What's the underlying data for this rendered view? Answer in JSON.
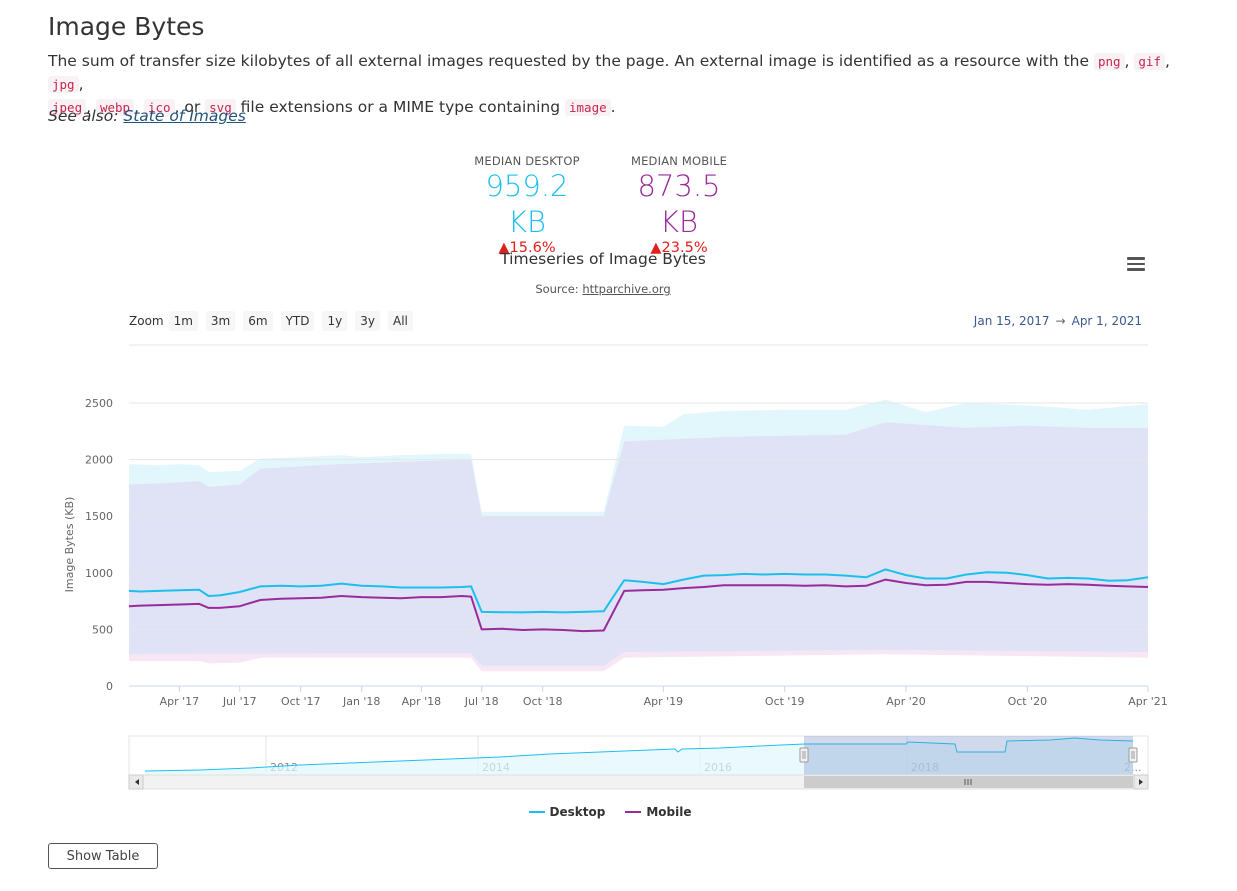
{
  "page": {
    "title": "Image Bytes",
    "desc_parts": [
      "The sum of transfer size kilobytes of all external images requested by the page. An external image is identified as a resource with the ",
      ", ",
      ", ",
      ",",
      ", ",
      ", ",
      ", or ",
      " file extensions or a MIME type containing ",
      "."
    ],
    "codes": [
      "png",
      "gif",
      "jpg",
      "jpeg",
      "webp",
      "ico",
      "svg",
      "image"
    ],
    "see_also_label": "See also:",
    "see_also_link": "State of Images"
  },
  "metrics": {
    "desktop": {
      "label": "MEDIAN DESKTOP",
      "value": "959.2 KB",
      "change": "▲15.6%"
    },
    "mobile": {
      "label": "MEDIAN MOBILE",
      "value": "873.5 KB",
      "change": "▲23.5%"
    }
  },
  "chart": {
    "title": "Timeseries of Image Bytes",
    "source_label": "Source:",
    "source_link": "httparchive.org",
    "zoom_label": "Zoom",
    "zoom_buttons": [
      "1m",
      "3m",
      "6m",
      "YTD",
      "1y",
      "3y",
      "All"
    ],
    "range_from": "Jan 15, 2017",
    "range_arrow": "→",
    "range_to": "Apr 1, 2021",
    "show_table": "Show Table"
  },
  "colors": {
    "desktop": "#1cc0ee",
    "mobile": "#9a2b9b",
    "band_desktop": "#dff6fc",
    "band_mobile": "#f6e4f3",
    "overlap": "#dfe3f5"
  },
  "chart_data": {
    "type": "line",
    "title": "Timeseries of Image Bytes",
    "ylabel": "Image Bytes (KB)",
    "ylim": [
      0,
      2500
    ],
    "yticks": [
      0,
      500,
      1000,
      1500,
      2000,
      2500
    ],
    "xlim": [
      "2017-01-15",
      "2021-04-01"
    ],
    "xticks": [
      {
        "label": "Apr '17",
        "date": "2017-04-01"
      },
      {
        "label": "Jul '17",
        "date": "2017-07-01"
      },
      {
        "label": "Oct '17",
        "date": "2017-10-01"
      },
      {
        "label": "Jan '18",
        "date": "2018-01-01"
      },
      {
        "label": "Apr '18",
        "date": "2018-04-01"
      },
      {
        "label": "Jul '18",
        "date": "2018-07-01"
      },
      {
        "label": "Oct '18",
        "date": "2018-10-01"
      },
      {
        "label": "Apr '19",
        "date": "2019-04-01"
      },
      {
        "label": "Oct '19",
        "date": "2019-10-01"
      },
      {
        "label": "Apr '20",
        "date": "2020-04-01"
      },
      {
        "label": "Oct '20",
        "date": "2020-10-01"
      },
      {
        "label": "Apr '21",
        "date": "2021-04-01"
      }
    ],
    "series": [
      {
        "name": "Desktop",
        "points": [
          [
            "2017-01-15",
            840
          ],
          [
            "2017-02-01",
            835
          ],
          [
            "2017-03-01",
            840
          ],
          [
            "2017-04-01",
            845
          ],
          [
            "2017-05-01",
            850
          ],
          [
            "2017-05-15",
            795
          ],
          [
            "2017-06-01",
            800
          ],
          [
            "2017-07-01",
            830
          ],
          [
            "2017-08-01",
            880
          ],
          [
            "2017-09-01",
            885
          ],
          [
            "2017-10-01",
            880
          ],
          [
            "2017-11-01",
            885
          ],
          [
            "2017-12-01",
            905
          ],
          [
            "2018-01-01",
            885
          ],
          [
            "2018-02-01",
            880
          ],
          [
            "2018-03-01",
            870
          ],
          [
            "2018-04-01",
            870
          ],
          [
            "2018-05-01",
            870
          ],
          [
            "2018-06-01",
            875
          ],
          [
            "2018-06-15",
            880
          ],
          [
            "2018-07-01",
            655
          ],
          [
            "2018-08-01",
            652
          ],
          [
            "2018-09-01",
            650
          ],
          [
            "2018-10-01",
            655
          ],
          [
            "2018-11-01",
            650
          ],
          [
            "2018-12-01",
            655
          ],
          [
            "2019-01-01",
            660
          ],
          [
            "2019-02-01",
            935
          ],
          [
            "2019-03-01",
            920
          ],
          [
            "2019-04-01",
            900
          ],
          [
            "2019-05-01",
            940
          ],
          [
            "2019-06-01",
            975
          ],
          [
            "2019-07-01",
            980
          ],
          [
            "2019-08-01",
            990
          ],
          [
            "2019-09-01",
            985
          ],
          [
            "2019-10-01",
            990
          ],
          [
            "2019-11-01",
            985
          ],
          [
            "2019-12-01",
            985
          ],
          [
            "2020-01-01",
            975
          ],
          [
            "2020-02-01",
            960
          ],
          [
            "2020-03-01",
            1030
          ],
          [
            "2020-04-01",
            980
          ],
          [
            "2020-05-01",
            950
          ],
          [
            "2020-06-01",
            950
          ],
          [
            "2020-07-01",
            985
          ],
          [
            "2020-08-01",
            1005
          ],
          [
            "2020-09-01",
            1000
          ],
          [
            "2020-10-01",
            980
          ],
          [
            "2020-11-01",
            950
          ],
          [
            "2020-12-01",
            955
          ],
          [
            "2021-01-01",
            950
          ],
          [
            "2021-02-01",
            930
          ],
          [
            "2021-03-01",
            935
          ],
          [
            "2021-04-01",
            960
          ]
        ]
      },
      {
        "name": "Mobile",
        "points": [
          [
            "2017-01-15",
            705
          ],
          [
            "2017-02-01",
            710
          ],
          [
            "2017-03-01",
            715
          ],
          [
            "2017-04-01",
            720
          ],
          [
            "2017-05-01",
            725
          ],
          [
            "2017-05-15",
            690
          ],
          [
            "2017-06-01",
            690
          ],
          [
            "2017-07-01",
            705
          ],
          [
            "2017-08-01",
            760
          ],
          [
            "2017-09-01",
            770
          ],
          [
            "2017-10-01",
            775
          ],
          [
            "2017-11-01",
            780
          ],
          [
            "2017-12-01",
            795
          ],
          [
            "2018-01-01",
            785
          ],
          [
            "2018-02-01",
            780
          ],
          [
            "2018-03-01",
            775
          ],
          [
            "2018-04-01",
            785
          ],
          [
            "2018-05-01",
            785
          ],
          [
            "2018-06-01",
            795
          ],
          [
            "2018-06-15",
            790
          ],
          [
            "2018-07-01",
            500
          ],
          [
            "2018-08-01",
            505
          ],
          [
            "2018-09-01",
            495
          ],
          [
            "2018-10-01",
            500
          ],
          [
            "2018-11-01",
            495
          ],
          [
            "2018-12-01",
            485
          ],
          [
            "2019-01-01",
            490
          ],
          [
            "2019-02-01",
            840
          ],
          [
            "2019-03-01",
            845
          ],
          [
            "2019-04-01",
            850
          ],
          [
            "2019-05-01",
            865
          ],
          [
            "2019-06-01",
            875
          ],
          [
            "2019-07-01",
            890
          ],
          [
            "2019-08-01",
            890
          ],
          [
            "2019-09-01",
            890
          ],
          [
            "2019-10-01",
            890
          ],
          [
            "2019-11-01",
            885
          ],
          [
            "2019-12-01",
            890
          ],
          [
            "2020-01-01",
            880
          ],
          [
            "2020-02-01",
            885
          ],
          [
            "2020-03-01",
            940
          ],
          [
            "2020-04-01",
            910
          ],
          [
            "2020-05-01",
            890
          ],
          [
            "2020-06-01",
            895
          ],
          [
            "2020-07-01",
            920
          ],
          [
            "2020-08-01",
            920
          ],
          [
            "2020-09-01",
            910
          ],
          [
            "2020-10-01",
            900
          ],
          [
            "2020-11-01",
            895
          ],
          [
            "2020-12-01",
            900
          ],
          [
            "2021-01-01",
            895
          ],
          [
            "2021-02-01",
            885
          ],
          [
            "2021-03-01",
            880
          ],
          [
            "2021-04-01",
            875
          ]
        ]
      }
    ],
    "bands": [
      {
        "series": "Desktop",
        "upper": [
          [
            "2017-01-15",
            1960
          ],
          [
            "2017-03-01",
            1950
          ],
          [
            "2017-04-01",
            1960
          ],
          [
            "2017-05-01",
            1950
          ],
          [
            "2017-05-15",
            1890
          ],
          [
            "2017-07-01",
            1900
          ],
          [
            "2017-08-01",
            2010
          ],
          [
            "2017-10-01",
            2020
          ],
          [
            "2017-12-01",
            2040
          ],
          [
            "2018-01-01",
            2020
          ],
          [
            "2018-03-01",
            2040
          ],
          [
            "2018-05-01",
            2050
          ],
          [
            "2018-06-15",
            2050
          ],
          [
            "2018-07-01",
            1540
          ],
          [
            "2018-10-01",
            1540
          ],
          [
            "2019-01-01",
            1540
          ],
          [
            "2019-02-01",
            2300
          ],
          [
            "2019-04-01",
            2290
          ],
          [
            "2019-05-01",
            2400
          ],
          [
            "2019-07-01",
            2430
          ],
          [
            "2019-10-01",
            2440
          ],
          [
            "2020-01-01",
            2440
          ],
          [
            "2020-03-01",
            2530
          ],
          [
            "2020-05-01",
            2420
          ],
          [
            "2020-07-01",
            2500
          ],
          [
            "2020-10-01",
            2480
          ],
          [
            "2021-01-01",
            2440
          ],
          [
            "2021-04-01",
            2490
          ]
        ],
        "lower": [
          [
            "2017-01-15",
            280
          ],
          [
            "2017-05-01",
            285
          ],
          [
            "2017-07-01",
            285
          ],
          [
            "2018-06-15",
            290
          ],
          [
            "2018-07-01",
            180
          ],
          [
            "2019-01-01",
            180
          ],
          [
            "2019-02-01",
            300
          ],
          [
            "2020-03-01",
            320
          ],
          [
            "2021-04-01",
            300
          ]
        ]
      },
      {
        "series": "Mobile",
        "upper": [
          [
            "2017-01-15",
            1780
          ],
          [
            "2017-03-01",
            1790
          ],
          [
            "2017-04-01",
            1800
          ],
          [
            "2017-05-01",
            1810
          ],
          [
            "2017-05-15",
            1760
          ],
          [
            "2017-07-01",
            1780
          ],
          [
            "2017-08-01",
            1920
          ],
          [
            "2017-10-01",
            1940
          ],
          [
            "2017-12-01",
            1960
          ],
          [
            "2018-03-01",
            1980
          ],
          [
            "2018-06-15",
            2000
          ],
          [
            "2018-07-01",
            1500
          ],
          [
            "2018-10-01",
            1500
          ],
          [
            "2019-01-01",
            1500
          ],
          [
            "2019-02-01",
            2160
          ],
          [
            "2019-07-01",
            2200
          ],
          [
            "2020-01-01",
            2220
          ],
          [
            "2020-03-01",
            2330
          ],
          [
            "2020-07-01",
            2280
          ],
          [
            "2020-10-01",
            2300
          ],
          [
            "2021-01-01",
            2280
          ],
          [
            "2021-04-01",
            2280
          ]
        ],
        "lower": [
          [
            "2017-01-15",
            220
          ],
          [
            "2017-05-01",
            220
          ],
          [
            "2017-05-15",
            200
          ],
          [
            "2017-07-01",
            205
          ],
          [
            "2017-08-01",
            250
          ],
          [
            "2018-06-15",
            250
          ],
          [
            "2018-07-01",
            130
          ],
          [
            "2019-01-01",
            130
          ],
          [
            "2019-02-01",
            250
          ],
          [
            "2020-03-01",
            280
          ],
          [
            "2021-04-01",
            250
          ]
        ]
      }
    ],
    "navigator": {
      "labels": [
        "2012",
        "2014",
        "2016",
        "2018",
        "2..."
      ],
      "selected_from": "2017-01-15",
      "selected_to": "2021-04-01"
    },
    "legend": {
      "position": "bottom-center",
      "items": [
        "Desktop",
        "Mobile"
      ]
    }
  }
}
